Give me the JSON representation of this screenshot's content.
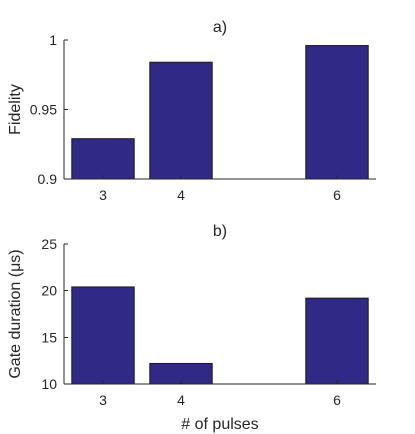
{
  "chart_data": [
    {
      "type": "bar",
      "title": "a)",
      "xlabel": "",
      "ylabel": "Fidelity",
      "x": [
        3,
        4,
        6
      ],
      "x_ticks": [
        "3",
        "4",
        "6"
      ],
      "xlim": [
        2.5,
        6.5
      ],
      "values": [
        0.929,
        0.984,
        0.996
      ],
      "ylim": [
        0.9,
        1
      ],
      "y_ticks": [
        "0.9",
        "0.95",
        "1"
      ],
      "grid": false,
      "bar_color": "#2e2a85"
    },
    {
      "type": "bar",
      "title": "b)",
      "xlabel": "# of pulses",
      "ylabel": "Gate duration (μs)",
      "x": [
        3,
        4,
        6
      ],
      "x_ticks": [
        "3",
        "4",
        "6"
      ],
      "xlim": [
        2.5,
        6.5
      ],
      "values": [
        20.4,
        12.2,
        19.2
      ],
      "ylim": [
        10,
        25
      ],
      "y_ticks": [
        "10",
        "15",
        "20",
        "25"
      ],
      "grid": false,
      "bar_color": "#2e2a85"
    }
  ]
}
